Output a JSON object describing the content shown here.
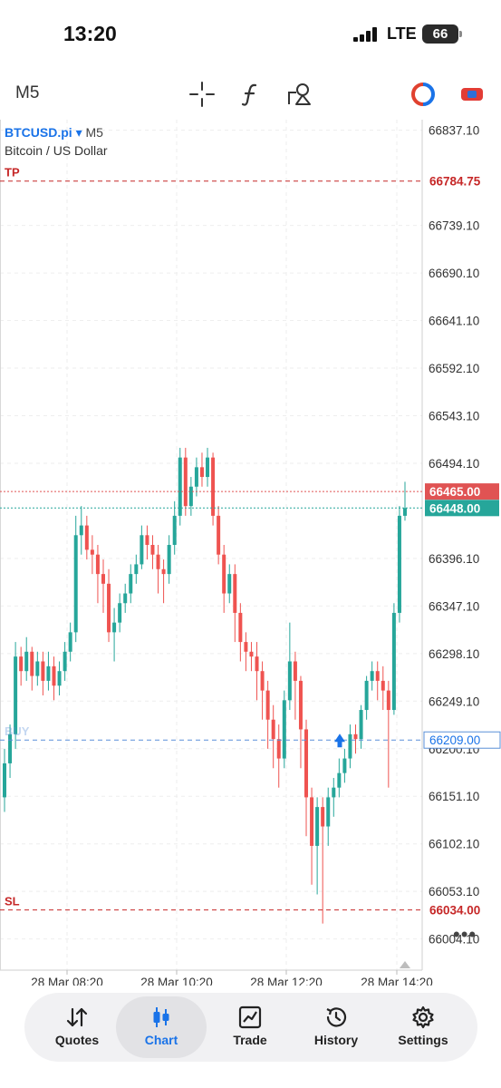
{
  "status_bar": {
    "time": "13:20",
    "network": "LTE",
    "battery": "66"
  },
  "toolbar": {
    "timeframe": "M5",
    "tools": [
      "crosshair-icon",
      "indicators-icon",
      "objects-icon",
      "one-click-trading-icon",
      "trade-toggle-icon"
    ]
  },
  "chart": {
    "symbol": "BTCUSD.pi",
    "symbol_caret": "▾",
    "timeframe": "M5",
    "description": "Bitcoin / US Dollar"
  },
  "chart_data": {
    "type": "candlestick",
    "price_axis_ticks": [
      66837.1,
      66739.1,
      66690.1,
      66641.1,
      66592.1,
      66543.1,
      66494.1,
      66396.1,
      66347.1,
      66298.1,
      66249.1,
      66200.1,
      66151.1,
      66102.1,
      66053.1,
      66004.1
    ],
    "price_axis_tick_labels": [
      "66837.10",
      "66739.10",
      "66690.10",
      "66641.10",
      "66592.10",
      "66543.10",
      "66494.10",
      "66396.10",
      "66347.10",
      "66298.10",
      "66249.10",
      "66200.10",
      "66151.10",
      "66102.10",
      "66053.10",
      "66004.10"
    ],
    "time_axis_labels": [
      "28 Mar 08:20",
      "28 Mar 10:20",
      "28 Mar 12:20",
      "28 Mar 14:20"
    ],
    "ylim": [
      65972,
      66848
    ],
    "levels": [
      {
        "label": "TP",
        "value": "66784.75",
        "price": 66784.75,
        "color": "#c62828"
      },
      {
        "label": "",
        "value": "66465.00",
        "price": 66465.0,
        "color": "#e05353"
      },
      {
        "label": "",
        "value": "66448.00",
        "price": 66448.0,
        "color": "#26a69a"
      },
      {
        "label": "BUY",
        "value": "66209.00",
        "price": 66209.0,
        "color": "#5a8fd8"
      },
      {
        "label": "SL",
        "value": "66034.00",
        "price": 66034.0,
        "color": "#c62828"
      }
    ],
    "candles": [
      [
        66150,
        66185,
        66135,
        66200
      ],
      [
        66185,
        66215,
        66170,
        66225
      ],
      [
        66215,
        66295,
        66200,
        66310
      ],
      [
        66295,
        66280,
        66265,
        66305
      ],
      [
        66280,
        66300,
        66270,
        66315
      ],
      [
        66300,
        66275,
        66260,
        66305
      ],
      [
        66275,
        66290,
        66265,
        66300
      ],
      [
        66290,
        66270,
        66255,
        66300
      ],
      [
        66270,
        66285,
        66260,
        66300
      ],
      [
        66285,
        66265,
        66250,
        66295
      ],
      [
        66265,
        66280,
        66255,
        66290
      ],
      [
        66280,
        66300,
        66270,
        66310
      ],
      [
        66300,
        66320,
        66290,
        66330
      ],
      [
        66320,
        66420,
        66310,
        66440
      ],
      [
        66420,
        66430,
        66400,
        66450
      ],
      [
        66430,
        66405,
        66395,
        66440
      ],
      [
        66405,
        66400,
        66380,
        66420
      ],
      [
        66400,
        66380,
        66350,
        66410
      ],
      [
        66380,
        66370,
        66340,
        66395
      ],
      [
        66370,
        66320,
        66310,
        66385
      ],
      [
        66320,
        66330,
        66290,
        66345
      ],
      [
        66330,
        66350,
        66320,
        66360
      ],
      [
        66350,
        66360,
        66340,
        66370
      ],
      [
        66360,
        66380,
        66350,
        66390
      ],
      [
        66380,
        66390,
        66370,
        66400
      ],
      [
        66390,
        66420,
        66385,
        66430
      ],
      [
        66420,
        66410,
        66395,
        66430
      ],
      [
        66410,
        66400,
        66385,
        66420
      ],
      [
        66400,
        66385,
        66360,
        66410
      ],
      [
        66385,
        66380,
        66350,
        66395
      ],
      [
        66380,
        66410,
        66370,
        66420
      ],
      [
        66410,
        66440,
        66400,
        66455
      ],
      [
        66440,
        66500,
        66430,
        66510
      ],
      [
        66500,
        66450,
        66440,
        66510
      ],
      [
        66450,
        66470,
        66440,
        66480
      ],
      [
        66470,
        66490,
        66460,
        66500
      ],
      [
        66490,
        66480,
        66470,
        66505
      ],
      [
        66480,
        66500,
        66470,
        66510
      ],
      [
        66500,
        66440,
        66430,
        66505
      ],
      [
        66440,
        66400,
        66390,
        66450
      ],
      [
        66400,
        66360,
        66340,
        66410
      ],
      [
        66360,
        66380,
        66350,
        66390
      ],
      [
        66380,
        66340,
        66310,
        66390
      ],
      [
        66340,
        66310,
        66290,
        66350
      ],
      [
        66310,
        66300,
        66280,
        66320
      ],
      [
        66300,
        66295,
        66280,
        66310
      ],
      [
        66295,
        66280,
        66250,
        66310
      ],
      [
        66280,
        66260,
        66230,
        66290
      ],
      [
        66260,
        66230,
        66200,
        66270
      ],
      [
        66230,
        66210,
        66180,
        66245
      ],
      [
        66210,
        66190,
        66160,
        66225
      ],
      [
        66190,
        66250,
        66180,
        66260
      ],
      [
        66250,
        66290,
        66240,
        66330
      ],
      [
        66290,
        66270,
        66230,
        66300
      ],
      [
        66270,
        66220,
        66180,
        66275
      ],
      [
        66220,
        66150,
        66110,
        66230
      ],
      [
        66150,
        66100,
        66060,
        66160
      ],
      [
        66100,
        66140,
        66050,
        66150
      ],
      [
        66140,
        66120,
        66020,
        66150
      ],
      [
        66120,
        66150,
        66100,
        66160
      ],
      [
        66150,
        66160,
        66130,
        66170
      ],
      [
        66160,
        66175,
        66150,
        66190
      ],
      [
        66175,
        66190,
        66165,
        66200
      ],
      [
        66190,
        66215,
        66180,
        66225
      ],
      [
        66215,
        66210,
        66195,
        66225
      ],
      [
        66210,
        66240,
        66200,
        66245
      ],
      [
        66240,
        66270,
        66230,
        66275
      ],
      [
        66270,
        66280,
        66260,
        66290
      ],
      [
        66280,
        66270,
        66250,
        66290
      ],
      [
        66270,
        66260,
        66240,
        66285
      ],
      [
        66260,
        66240,
        66160,
        66270
      ],
      [
        66240,
        66340,
        66235,
        66350
      ],
      [
        66340,
        66440,
        66330,
        66450
      ],
      [
        66440,
        66448,
        66435,
        66475
      ]
    ]
  },
  "tabs": [
    {
      "id": "quotes",
      "label": "Quotes",
      "icon": "quotes-arrows-icon"
    },
    {
      "id": "chart",
      "label": "Chart",
      "icon": "candles-icon",
      "active": true
    },
    {
      "id": "trade",
      "label": "Trade",
      "icon": "trend-chart-icon"
    },
    {
      "id": "history",
      "label": "History",
      "icon": "history-clock-icon"
    },
    {
      "id": "settings",
      "label": "Settings",
      "icon": "gear-icon"
    }
  ]
}
